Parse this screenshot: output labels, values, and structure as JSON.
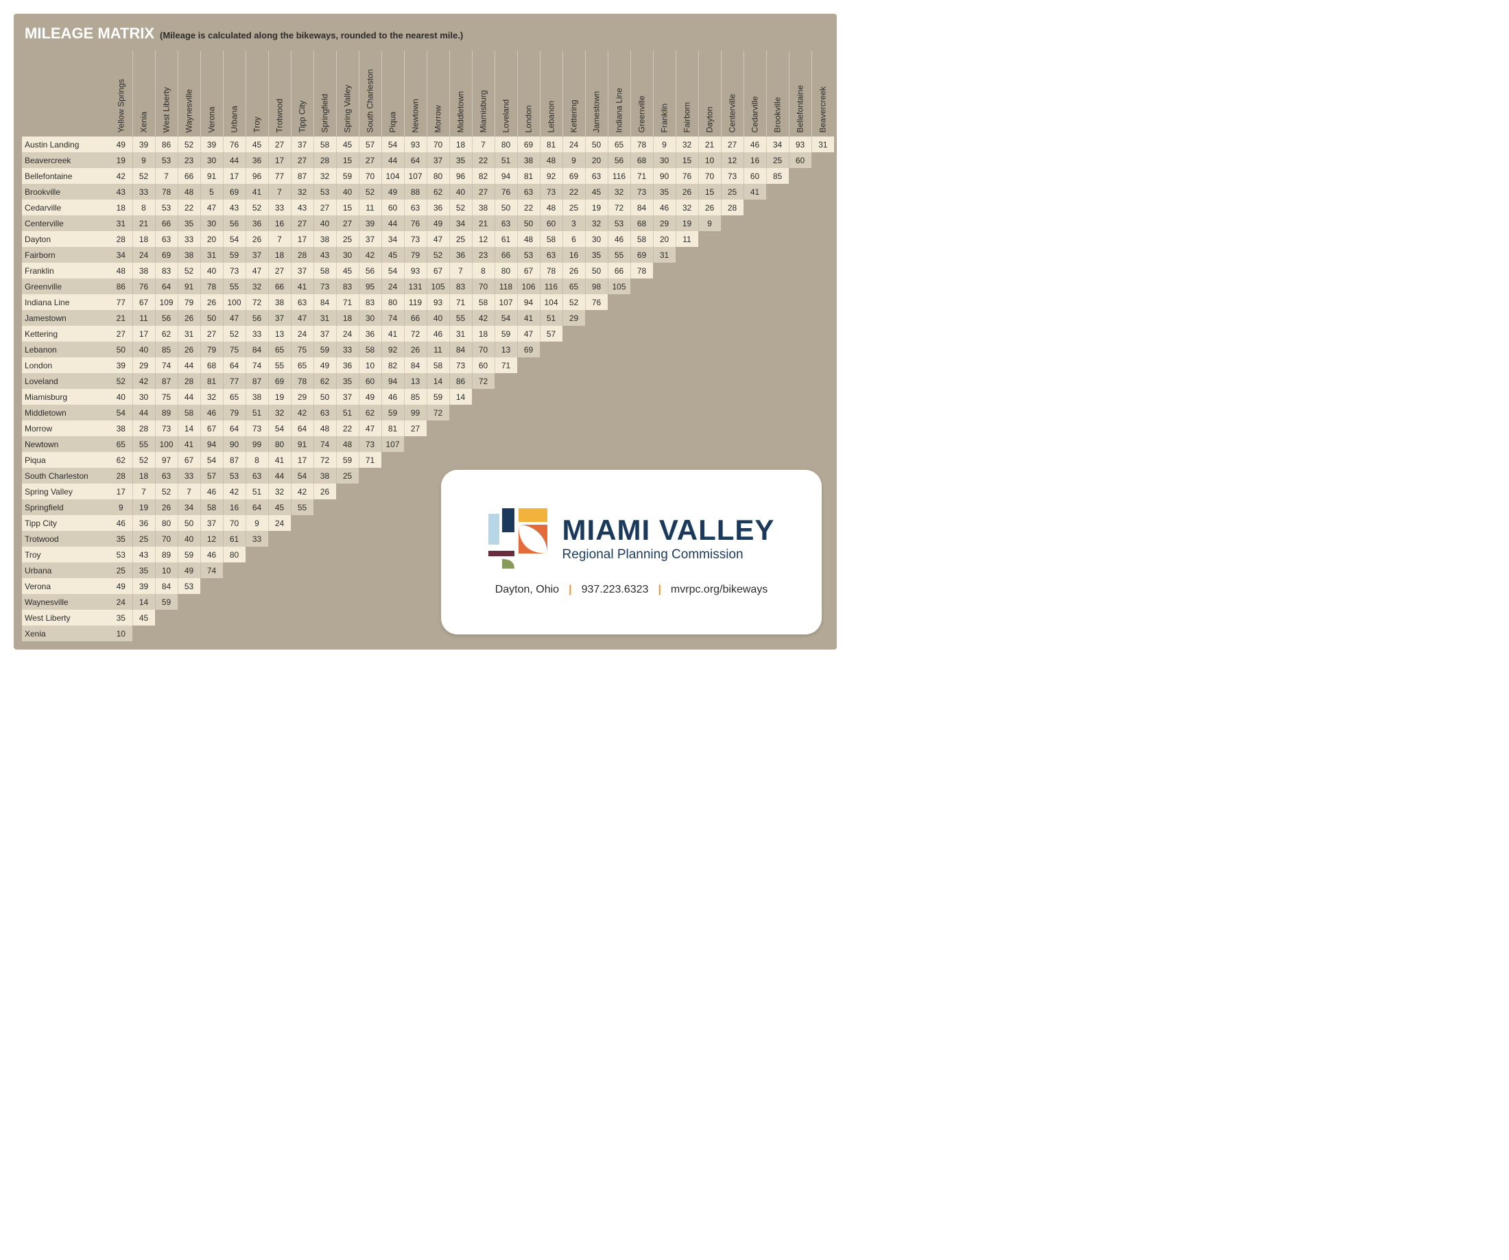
{
  "title": "MILEAGE MATRIX",
  "subtitle": "(Mileage is calculated along the bikeways, rounded to the nearest mile.)",
  "columns": [
    "Yellow Springs",
    "Xenia",
    "West Liberty",
    "Waynesville",
    "Verona",
    "Urbana",
    "Troy",
    "Trotwood",
    "Tipp City",
    "Springfield",
    "Spring Valley",
    "South Charleston",
    "Piqua",
    "Newtown",
    "Morrow",
    "Middletown",
    "Miamisburg",
    "Loveland",
    "London",
    "Lebanon",
    "Kettering",
    "Jamestown",
    "Indiana Line",
    "Greenville",
    "Franklin",
    "Fairborn",
    "Dayton",
    "Centerville",
    "Cedarville",
    "Brookville",
    "Bellefontaine",
    "Beavercreek"
  ],
  "rows": [
    {
      "label": "Austin Landing",
      "cells": [
        49,
        39,
        86,
        52,
        39,
        76,
        45,
        27,
        37,
        58,
        45,
        57,
        54,
        93,
        70,
        18,
        7,
        80,
        69,
        81,
        24,
        50,
        65,
        78,
        9,
        32,
        21,
        27,
        46,
        34,
        93,
        31
      ]
    },
    {
      "label": "Beavercreek",
      "cells": [
        19,
        9,
        53,
        23,
        30,
        44,
        36,
        17,
        27,
        28,
        15,
        27,
        44,
        64,
        37,
        35,
        22,
        51,
        38,
        48,
        9,
        20,
        56,
        68,
        30,
        15,
        10,
        12,
        16,
        25,
        60
      ]
    },
    {
      "label": "Bellefontaine",
      "cells": [
        42,
        52,
        7,
        66,
        91,
        17,
        96,
        77,
        87,
        32,
        59,
        70,
        104,
        107,
        80,
        96,
        82,
        94,
        81,
        92,
        69,
        63,
        116,
        71,
        90,
        76,
        70,
        73,
        60,
        85
      ]
    },
    {
      "label": "Brookville",
      "cells": [
        43,
        33,
        78,
        48,
        5,
        69,
        41,
        7,
        32,
        53,
        40,
        52,
        49,
        88,
        62,
        40,
        27,
        76,
        63,
        73,
        22,
        45,
        32,
        73,
        35,
        26,
        15,
        25,
        41
      ]
    },
    {
      "label": "Cedarville",
      "cells": [
        18,
        8,
        53,
        22,
        47,
        43,
        52,
        33,
        43,
        27,
        15,
        11,
        60,
        63,
        36,
        52,
        38,
        50,
        22,
        48,
        25,
        19,
        72,
        84,
        46,
        32,
        26,
        28
      ]
    },
    {
      "label": "Centerville",
      "cells": [
        31,
        21,
        66,
        35,
        30,
        56,
        36,
        16,
        27,
        40,
        27,
        39,
        44,
        76,
        49,
        34,
        21,
        63,
        50,
        60,
        3,
        32,
        53,
        68,
        29,
        19,
        9
      ]
    },
    {
      "label": "Dayton",
      "cells": [
        28,
        18,
        63,
        33,
        20,
        54,
        26,
        7,
        17,
        38,
        25,
        37,
        34,
        73,
        47,
        25,
        12,
        61,
        48,
        58,
        6,
        30,
        46,
        58,
        20,
        11
      ]
    },
    {
      "label": "Fairborn",
      "cells": [
        34,
        24,
        69,
        38,
        31,
        59,
        37,
        18,
        28,
        43,
        30,
        42,
        45,
        79,
        52,
        36,
        23,
        66,
        53,
        63,
        16,
        35,
        55,
        69,
        31
      ]
    },
    {
      "label": "Franklin",
      "cells": [
        48,
        38,
        83,
        52,
        40,
        73,
        47,
        27,
        37,
        58,
        45,
        56,
        54,
        93,
        67,
        7,
        8,
        80,
        67,
        78,
        26,
        50,
        66,
        78
      ]
    },
    {
      "label": "Greenville",
      "cells": [
        86,
        76,
        64,
        91,
        78,
        55,
        32,
        66,
        41,
        73,
        83,
        95,
        24,
        131,
        105,
        83,
        70,
        118,
        106,
        116,
        65,
        98,
        105
      ]
    },
    {
      "label": "Indiana Line",
      "cells": [
        77,
        67,
        109,
        79,
        26,
        100,
        72,
        38,
        63,
        84,
        71,
        83,
        80,
        119,
        93,
        71,
        58,
        107,
        94,
        104,
        52,
        76
      ]
    },
    {
      "label": "Jamestown",
      "cells": [
        21,
        11,
        56,
        26,
        50,
        47,
        56,
        37,
        47,
        31,
        18,
        30,
        74,
        66,
        40,
        55,
        42,
        54,
        41,
        51,
        29
      ]
    },
    {
      "label": "Kettering",
      "cells": [
        27,
        17,
        62,
        31,
        27,
        52,
        33,
        13,
        24,
        37,
        24,
        36,
        41,
        72,
        46,
        31,
        18,
        59,
        47,
        57
      ]
    },
    {
      "label": "Lebanon",
      "cells": [
        50,
        40,
        85,
        26,
        79,
        75,
        84,
        65,
        75,
        59,
        33,
        58,
        92,
        26,
        11,
        84,
        70,
        13,
        69
      ]
    },
    {
      "label": "London",
      "cells": [
        39,
        29,
        74,
        44,
        68,
        64,
        74,
        55,
        65,
        49,
        36,
        10,
        82,
        84,
        58,
        73,
        60,
        71
      ]
    },
    {
      "label": "Loveland",
      "cells": [
        52,
        42,
        87,
        28,
        81,
        77,
        87,
        69,
        78,
        62,
        35,
        60,
        94,
        13,
        14,
        86,
        72
      ]
    },
    {
      "label": "Miamisburg",
      "cells": [
        40,
        30,
        75,
        44,
        32,
        65,
        38,
        19,
        29,
        50,
        37,
        49,
        46,
        85,
        59,
        14
      ]
    },
    {
      "label": "Middletown",
      "cells": [
        54,
        44,
        89,
        58,
        46,
        79,
        51,
        32,
        42,
        63,
        51,
        62,
        59,
        99,
        72
      ]
    },
    {
      "label": "Morrow",
      "cells": [
        38,
        28,
        73,
        14,
        67,
        64,
        73,
        54,
        64,
        48,
        22,
        47,
        81,
        27
      ]
    },
    {
      "label": "Newtown",
      "cells": [
        65,
        55,
        100,
        41,
        94,
        90,
        99,
        80,
        91,
        74,
        48,
        73,
        107
      ]
    },
    {
      "label": "Piqua",
      "cells": [
        62,
        52,
        97,
        67,
        54,
        87,
        8,
        41,
        17,
        72,
        59,
        71
      ]
    },
    {
      "label": "South Charleston",
      "cells": [
        28,
        18,
        63,
        33,
        57,
        53,
        63,
        44,
        54,
        38,
        25
      ]
    },
    {
      "label": "Spring Valley",
      "cells": [
        17,
        7,
        52,
        7,
        46,
        42,
        51,
        32,
        42,
        26
      ]
    },
    {
      "label": "Springfield",
      "cells": [
        9,
        19,
        26,
        34,
        58,
        16,
        64,
        45,
        55
      ]
    },
    {
      "label": "Tipp City",
      "cells": [
        46,
        36,
        80,
        50,
        37,
        70,
        9,
        24
      ]
    },
    {
      "label": "Trotwood",
      "cells": [
        35,
        25,
        70,
        40,
        12,
        61,
        33
      ]
    },
    {
      "label": "Troy",
      "cells": [
        53,
        43,
        89,
        59,
        46,
        80
      ]
    },
    {
      "label": "Urbana",
      "cells": [
        25,
        35,
        10,
        49,
        74
      ]
    },
    {
      "label": "Verona",
      "cells": [
        49,
        39,
        84,
        53
      ]
    },
    {
      "label": "Waynesville",
      "cells": [
        24,
        14,
        59
      ]
    },
    {
      "label": "West Liberty",
      "cells": [
        35,
        45
      ]
    },
    {
      "label": "Xenia",
      "cells": [
        10
      ]
    }
  ],
  "logo": {
    "main": "MIAMI VALLEY",
    "sub": "Regional Planning Commission"
  },
  "contact": {
    "city": "Dayton, Ohio",
    "phone": "937.223.6323",
    "url": "mvrpc.org/bikeways"
  },
  "colors": {
    "bg": "#b3a895",
    "row_even": "#f4ecd8",
    "row_odd": "#d6ceba",
    "brand_dark": "#1b3a5b",
    "accent_orange": "#e8953a",
    "logo_blue": "#b8d7e6",
    "logo_navy": "#1b3a5b",
    "logo_maroon": "#6b2e3e",
    "logo_olive": "#8a9a5b",
    "logo_gold": "#f2b33d",
    "logo_orange": "#e36c3a"
  }
}
